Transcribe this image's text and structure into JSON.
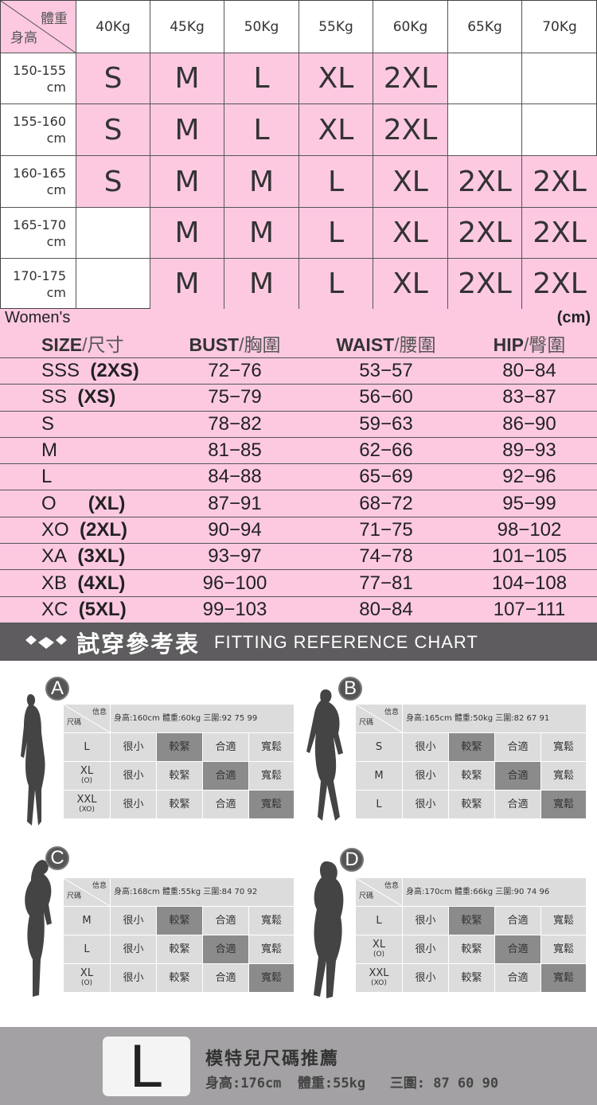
{
  "size_grid": {
    "corner_weight": "體重",
    "corner_height": "身高",
    "weights": [
      "40Kg",
      "45Kg",
      "50Kg",
      "55Kg",
      "60Kg",
      "65Kg",
      "70Kg"
    ],
    "rows": [
      {
        "height": "150-155",
        "unit": "cm",
        "sizes": [
          "S",
          "M",
          "L",
          "XL",
          "2XL",
          "",
          ""
        ]
      },
      {
        "height": "155-160",
        "unit": "cm",
        "sizes": [
          "S",
          "M",
          "L",
          "XL",
          "2XL",
          "",
          ""
        ]
      },
      {
        "height": "160-165",
        "unit": "cm",
        "sizes": [
          "S",
          "M",
          "M",
          "L",
          "XL",
          "2XL",
          "2XL"
        ]
      },
      {
        "height": "165-170",
        "unit": "cm",
        "sizes": [
          "",
          "M",
          "M",
          "L",
          "XL",
          "2XL",
          "2XL"
        ]
      },
      {
        "height": "170-175",
        "unit": "cm",
        "sizes": [
          "",
          "M",
          "M",
          "L",
          "XL",
          "2XL",
          "2XL"
        ]
      }
    ],
    "highlight_color": "#fdc9e1"
  },
  "women_table": {
    "title": "Women's",
    "unit": "(cm)",
    "headers": [
      {
        "en": "SIZE",
        "zh": "/尺寸"
      },
      {
        "en": "BUST",
        "zh": "/胸圍"
      },
      {
        "en": "WAIST",
        "zh": "/腰圍"
      },
      {
        "en": "HIP",
        "zh": "/臀圍"
      }
    ],
    "rows": [
      {
        "size": "SSS",
        "alt": "(2XS)",
        "bust": "72−76",
        "waist": "53−57",
        "hip": "80−84"
      },
      {
        "size": "SS",
        "alt": "(XS)",
        "bust": "75−79",
        "waist": "56−60",
        "hip": "83−87"
      },
      {
        "size": "S",
        "alt": "",
        "bust": "78−82",
        "waist": "59−63",
        "hip": "86−90"
      },
      {
        "size": "M",
        "alt": "",
        "bust": "81−85",
        "waist": "62−66",
        "hip": "89−93"
      },
      {
        "size": "L",
        "alt": "",
        "bust": "84−88",
        "waist": "65−69",
        "hip": "92−96"
      },
      {
        "size": "O",
        "alt": "(XL)",
        "bust": "87−91",
        "waist": "68−72",
        "hip": "95−99"
      },
      {
        "size": "XO",
        "alt": "(2XL)",
        "bust": "90−94",
        "waist": "71−75",
        "hip": "98−102"
      },
      {
        "size": "XA",
        "alt": "(3XL)",
        "bust": "93−97",
        "waist": "74−78",
        "hip": "101−105"
      },
      {
        "size": "XB",
        "alt": "(4XL)",
        "bust": "96−100",
        "waist": "77−81",
        "hip": "104−108"
      },
      {
        "size": "XC",
        "alt": "(5XL)",
        "bust": "99−103",
        "waist": "80−84",
        "hip": "107−111"
      }
    ]
  },
  "banner": {
    "zh": "試穿參考表",
    "en": "FITTING REFERENCE CHART",
    "icon": "diamond-logo-icon"
  },
  "fitting": {
    "corner_info": "信息",
    "corner_size": "尺碼",
    "levels": [
      "很小",
      "較緊",
      "合適",
      "寬鬆"
    ],
    "cards": [
      {
        "label": "A",
        "info": "身高:160cm  體重:60kg  三圍:92 75 99",
        "rows": [
          {
            "size": "L",
            "sub": "",
            "fit": 1
          },
          {
            "size": "XL",
            "sub": "(O)",
            "fit": 2
          },
          {
            "size": "XXL",
            "sub": "(XO)",
            "fit": 3
          }
        ]
      },
      {
        "label": "B",
        "info": "身高:165cm  體重:50kg  三圍:82 67 91",
        "rows": [
          {
            "size": "S",
            "sub": "",
            "fit": 1
          },
          {
            "size": "M",
            "sub": "",
            "fit": 2
          },
          {
            "size": "L",
            "sub": "",
            "fit": 3
          }
        ]
      },
      {
        "label": "C",
        "info": "身高:168cm  體重:55kg  三圍:84 70 92",
        "rows": [
          {
            "size": "M",
            "sub": "",
            "fit": 1
          },
          {
            "size": "L",
            "sub": "",
            "fit": 2
          },
          {
            "size": "XL",
            "sub": "(O)",
            "fit": 3
          }
        ]
      },
      {
        "label": "D",
        "info": "身高:170cm  體重:66kg  三圍:90 74 96",
        "rows": [
          {
            "size": "L",
            "sub": "",
            "fit": 1
          },
          {
            "size": "XL",
            "sub": "(O)",
            "fit": 2
          },
          {
            "size": "XXL",
            "sub": "(XO)",
            "fit": 3
          }
        ]
      }
    ]
  },
  "model": {
    "size": "L",
    "title": "模特兒尺碼推薦",
    "stats": "身高:176cm  體重:55kg   三圍: 87 60 90"
  }
}
